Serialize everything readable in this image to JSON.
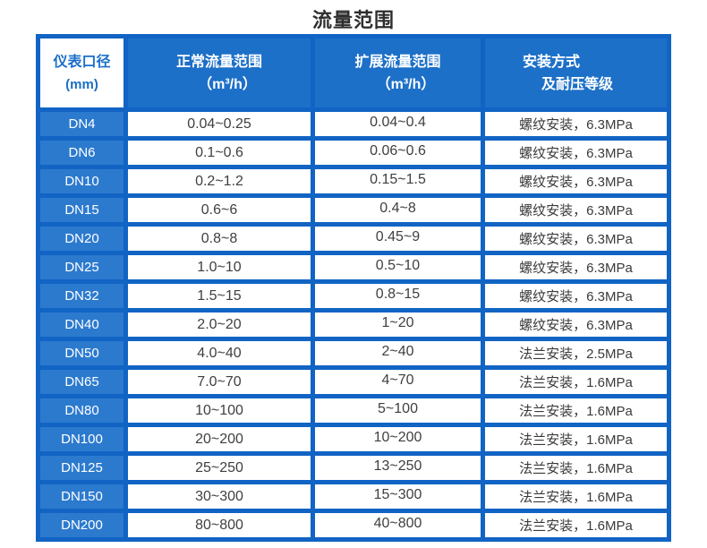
{
  "title": "流量范围",
  "colors": {
    "table_border_blue": "#1164c4",
    "header_blue": "#1d70c8",
    "dn_cell_blue": "#2c7ace",
    "header_first_text_blue": "#1b6fc8",
    "data_text": "#3f3f3f",
    "title_text": "#2e2e2e",
    "page_background": "#ffffff"
  },
  "table": {
    "headers": [
      {
        "line1": "仪表口径",
        "line2": "(mm)"
      },
      {
        "line1": "正常流量范围",
        "line2": "（m³/h）"
      },
      {
        "line1": "扩展流量范围",
        "line2": "（m³/h）"
      },
      {
        "line1": "安装方式",
        "line2": "及耐压等级"
      }
    ],
    "rows": [
      {
        "dn": "DN4",
        "normal": "0.04~0.25",
        "extended": "0.04~0.4",
        "install": "螺纹安装，6.3MPa"
      },
      {
        "dn": "DN6",
        "normal": "0.1~0.6",
        "extended": "0.06~0.6",
        "install": "螺纹安装，6.3MPa"
      },
      {
        "dn": "DN10",
        "normal": "0.2~1.2",
        "extended": "0.15~1.5",
        "install": "螺纹安装，6.3MPa"
      },
      {
        "dn": "DN15",
        "normal": "0.6~6",
        "extended": "0.4~8",
        "install": "螺纹安装，6.3MPa"
      },
      {
        "dn": "DN20",
        "normal": "0.8~8",
        "extended": "0.45~9",
        "install": "螺纹安装，6.3MPa"
      },
      {
        "dn": "DN25",
        "normal": "1.0~10",
        "extended": "0.5~10",
        "install": "螺纹安装，6.3MPa"
      },
      {
        "dn": "DN32",
        "normal": "1.5~15",
        "extended": "0.8~15",
        "install": "螺纹安装，6.3MPa"
      },
      {
        "dn": "DN40",
        "normal": "2.0~20",
        "extended": "1~20",
        "install": "螺纹安装，6.3MPa"
      },
      {
        "dn": "DN50",
        "normal": "4.0~40",
        "extended": "2~40",
        "install": "法兰安装，2.5MPa"
      },
      {
        "dn": "DN65",
        "normal": "7.0~70",
        "extended": "4~70",
        "install": "法兰安装，1.6MPa"
      },
      {
        "dn": "DN80",
        "normal": "10~100",
        "extended": "5~100",
        "install": "法兰安装，1.6MPa"
      },
      {
        "dn": "DN100",
        "normal": "20~200",
        "extended": "10~200",
        "install": "法兰安装，1.6MPa"
      },
      {
        "dn": "DN125",
        "normal": "25~250",
        "extended": "13~250",
        "install": "法兰安装，1.6MPa"
      },
      {
        "dn": "DN150",
        "normal": "30~300",
        "extended": "15~300",
        "install": "法兰安装，1.6MPa"
      },
      {
        "dn": "DN200",
        "normal": "80~800",
        "extended": "40~800",
        "install": "法兰安装，1.6MPa"
      }
    ]
  },
  "chart_data": {
    "type": "table",
    "title": "流量范围",
    "columns": [
      "仪表口径 (mm)",
      "正常流量范围（m³/h）",
      "扩展流量范围（m³/h）",
      "安装方式 及耐压等级"
    ],
    "rows": [
      [
        "DN4",
        "0.04~0.25",
        "0.04~0.4",
        "螺纹安装，6.3MPa"
      ],
      [
        "DN6",
        "0.1~0.6",
        "0.06~0.6",
        "螺纹安装，6.3MPa"
      ],
      [
        "DN10",
        "0.2~1.2",
        "0.15~1.5",
        "螺纹安装，6.3MPa"
      ],
      [
        "DN15",
        "0.6~6",
        "0.4~8",
        "螺纹安装，6.3MPa"
      ],
      [
        "DN20",
        "0.8~8",
        "0.45~9",
        "螺纹安装，6.3MPa"
      ],
      [
        "DN25",
        "1.0~10",
        "0.5~10",
        "螺纹安装，6.3MPa"
      ],
      [
        "DN32",
        "1.5~15",
        "0.8~15",
        "螺纹安装，6.3MPa"
      ],
      [
        "DN40",
        "2.0~20",
        "1~20",
        "螺纹安装，6.3MPa"
      ],
      [
        "DN50",
        "4.0~40",
        "2~40",
        "法兰安装，2.5MPa"
      ],
      [
        "DN65",
        "7.0~70",
        "4~70",
        "法兰安装，1.6MPa"
      ],
      [
        "DN80",
        "10~100",
        "5~100",
        "法兰安装，1.6MPa"
      ],
      [
        "DN100",
        "20~200",
        "10~200",
        "法兰安装，1.6MPa"
      ],
      [
        "DN125",
        "25~250",
        "13~250",
        "法兰安装，1.6MPa"
      ],
      [
        "DN150",
        "30~300",
        "15~300",
        "法兰安装，1.6MPa"
      ],
      [
        "DN200",
        "80~800",
        "40~800",
        "法兰安装，1.6MPa"
      ]
    ]
  }
}
